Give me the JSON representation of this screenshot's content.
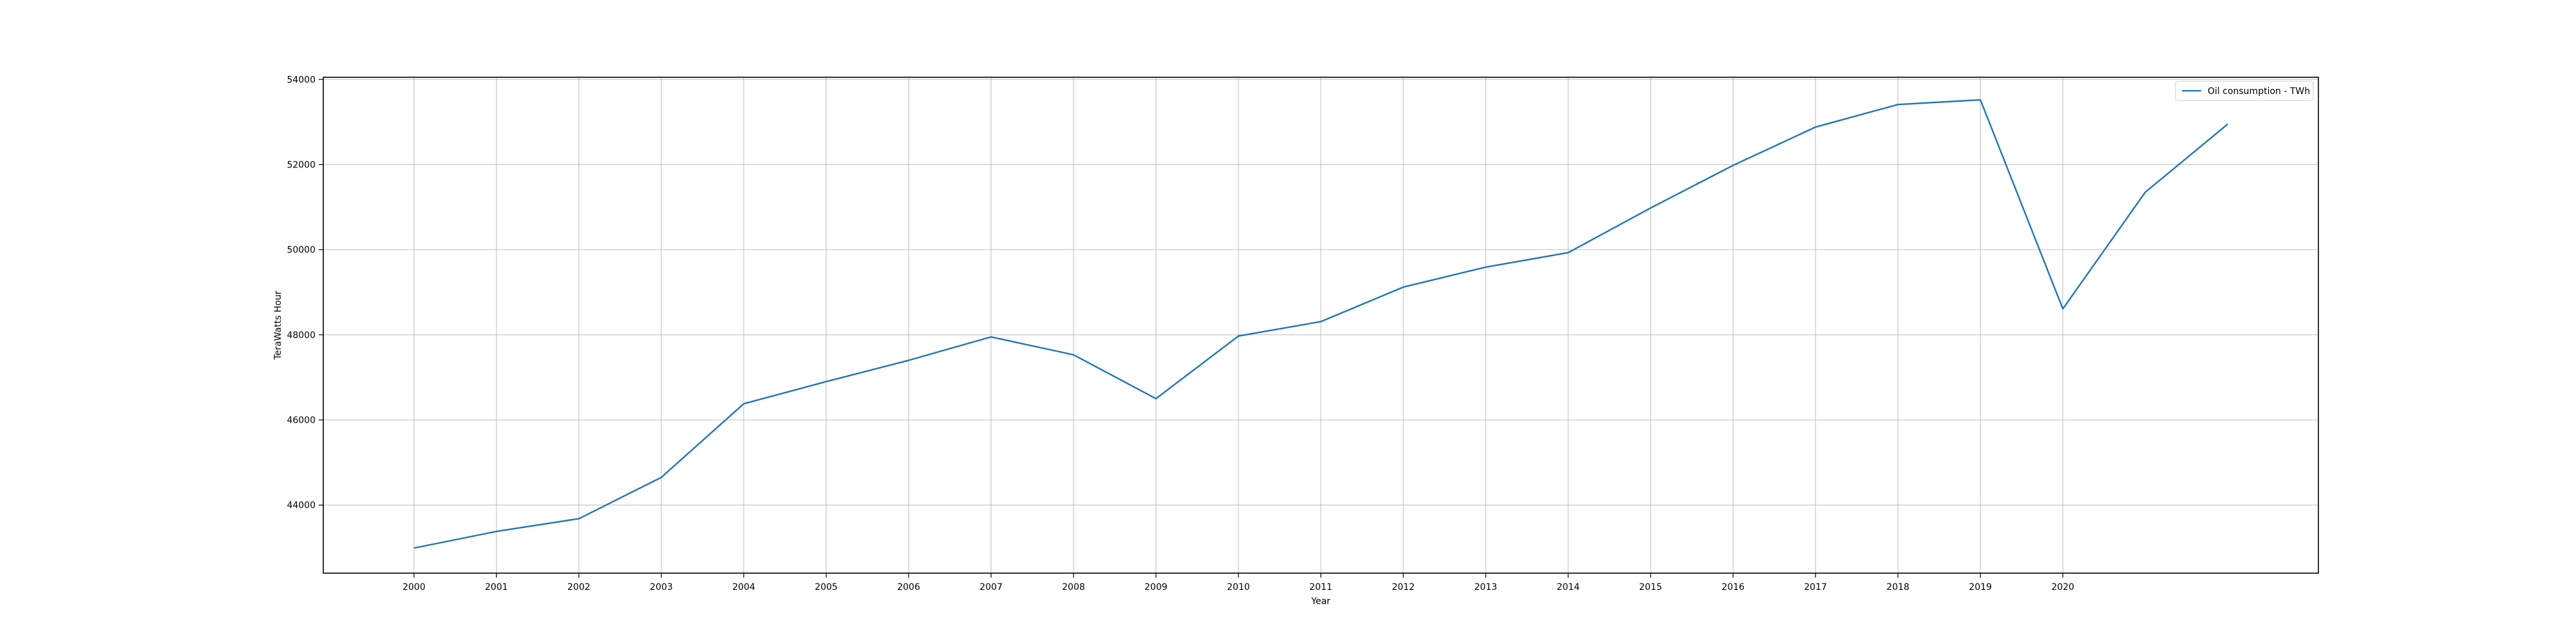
{
  "chart_data": {
    "type": "line",
    "title": "",
    "xlabel": "Year",
    "ylabel": "TeraWatts Hour",
    "x": [
      2000,
      2001,
      2002,
      2003,
      2004,
      2005,
      2006,
      2007,
      2008,
      2009,
      2010,
      2011,
      2012,
      2013,
      2014,
      2015,
      2016,
      2017,
      2018,
      2019,
      2020,
      2021,
      2022
    ],
    "x_tick_labels": [
      "2000",
      "2001",
      "2002",
      "2003",
      "2004",
      "2005",
      "2006",
      "2007",
      "2008",
      "2009",
      "2010",
      "2011",
      "2012",
      "2013",
      "2014",
      "2015",
      "2016",
      "2017",
      "2018",
      "2019",
      "2020"
    ],
    "y_ticks": [
      44000,
      46000,
      48000,
      50000,
      52000,
      54000
    ],
    "y_tick_labels": [
      "44000",
      "46000",
      "48000",
      "50000",
      "52000",
      "54000"
    ],
    "xlim": [
      1998.9,
      2023.1
    ],
    "ylim": [
      42400,
      54050
    ],
    "grid": true,
    "legend_position": "top-right",
    "series": [
      {
        "name": "Oil consumption - TWh",
        "color": "#1f77b4",
        "values": [
          42990,
          43380,
          43680,
          44650,
          46380,
          46900,
          47400,
          47950,
          47530,
          46500,
          47970,
          48310,
          49120,
          49590,
          49930,
          50980,
          51980,
          52880,
          53410,
          53520,
          48610,
          51350,
          52950
        ]
      }
    ]
  }
}
